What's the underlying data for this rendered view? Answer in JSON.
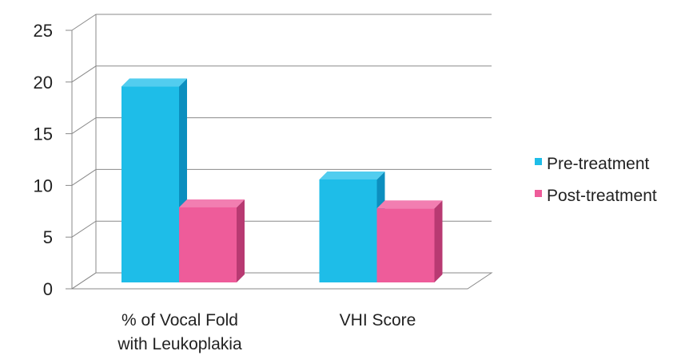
{
  "chart_data": {
    "type": "bar",
    "style": "3d-clustered-column",
    "categories": [
      "% of Vocal Fold\nwith Leukoplakia",
      "VHI Score"
    ],
    "series": [
      {
        "name": "Pre-treatment",
        "values": [
          20.5,
          11.5
        ],
        "color": "#1ebde8",
        "top_color": "#52cdef",
        "side_color": "#0c8fbf"
      },
      {
        "name": "Post-treatment",
        "values": [
          8.8,
          8.7
        ],
        "color": "#ee5c9a",
        "top_color": "#f27eb1",
        "side_color": "#b83a72"
      }
    ],
    "ylim": [
      0,
      25
    ],
    "yticks": [
      0,
      5,
      10,
      15,
      20,
      25
    ],
    "grid": true,
    "legend_position": "right",
    "title": "",
    "xlabel": "",
    "ylabel": ""
  }
}
